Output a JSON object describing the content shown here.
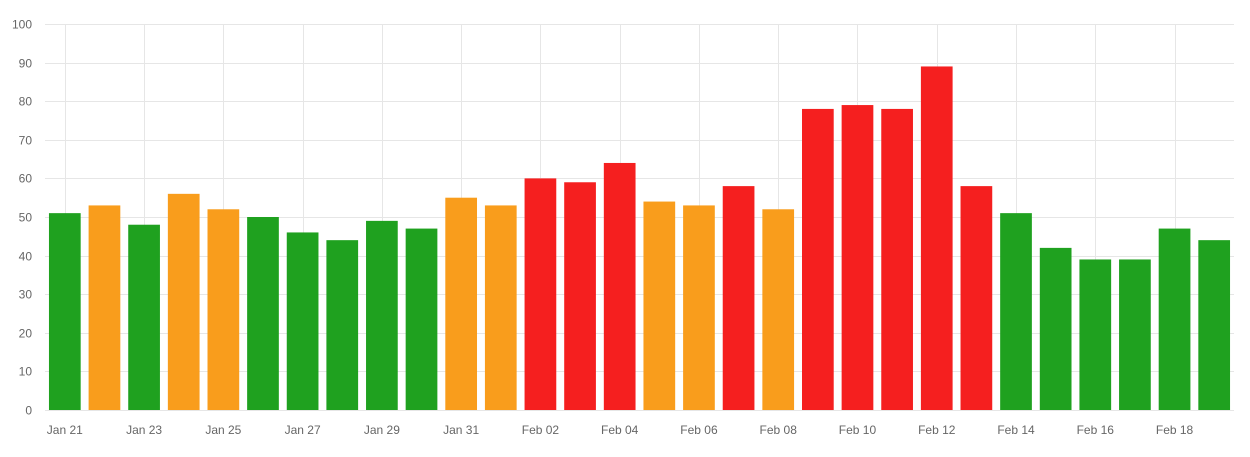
{
  "chart_data": {
    "type": "bar",
    "categories": [
      "Jan 21",
      "Jan 22",
      "Jan 23",
      "Jan 24",
      "Jan 25",
      "Jan 26",
      "Jan 27",
      "Jan 28",
      "Jan 29",
      "Jan 30",
      "Jan 31",
      "Feb 01",
      "Feb 02",
      "Feb 03",
      "Feb 04",
      "Feb 05",
      "Feb 06",
      "Feb 07",
      "Feb 08",
      "Feb 09",
      "Feb 10",
      "Feb 11",
      "Feb 12",
      "Feb 13",
      "Feb 14",
      "Feb 15",
      "Feb 16",
      "Feb 17",
      "Feb 18",
      "Feb 19"
    ],
    "x_tick_labels": [
      "Jan 21",
      "Jan 23",
      "Jan 25",
      "Jan 27",
      "Jan 29",
      "Jan 31",
      "Feb 02",
      "Feb 04",
      "Feb 06",
      "Feb 08",
      "Feb 10",
      "Feb 12",
      "Feb 14",
      "Feb 16",
      "Feb 18"
    ],
    "values": [
      51,
      53,
      48,
      56,
      52,
      50,
      46,
      44,
      49,
      47,
      55,
      53,
      60,
      59,
      64,
      54,
      53,
      58,
      52,
      78,
      79,
      78,
      89,
      58,
      51,
      42,
      39,
      39,
      47,
      44
    ],
    "bar_colors": [
      "#1fa11f",
      "#f99d1c",
      "#1fa11f",
      "#f99d1c",
      "#f99d1c",
      "#1fa11f",
      "#1fa11f",
      "#1fa11f",
      "#1fa11f",
      "#1fa11f",
      "#f99d1c",
      "#f99d1c",
      "#f51f1f",
      "#f51f1f",
      "#f51f1f",
      "#f99d1c",
      "#f99d1c",
      "#f51f1f",
      "#f99d1c",
      "#f51f1f",
      "#f51f1f",
      "#f51f1f",
      "#f51f1f",
      "#f51f1f",
      "#1fa11f",
      "#1fa11f",
      "#1fa11f",
      "#1fa11f",
      "#1fa11f",
      "#1fa11f"
    ],
    "y_ticks": [
      0,
      10,
      20,
      30,
      40,
      50,
      60,
      70,
      80,
      90,
      100
    ],
    "ylim": [
      0,
      100
    ],
    "grid": true,
    "title": "",
    "xlabel": "",
    "ylabel": ""
  },
  "colors": {
    "good": "#1fa11f",
    "moderate": "#f99d1c",
    "bad": "#f51f1f",
    "grid": "#e6e6e6",
    "tick_text": "#666666"
  }
}
